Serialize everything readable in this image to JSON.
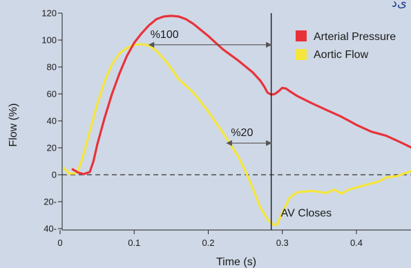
{
  "logo_text": "ﯼﺩ",
  "chart_data": {
    "type": "line",
    "xlabel": "Time (s)",
    "ylabel": "Flow (%)",
    "xlim": [
      0,
      0.47
    ],
    "ylim": [
      -40,
      120
    ],
    "x_ticks": [
      "0",
      "0.1",
      "0.2",
      "0.3",
      "0.4"
    ],
    "x_tick_values": [
      0,
      0.1,
      0.2,
      0.3,
      0.4
    ],
    "y_ticks": [
      "120",
      "100",
      "80",
      "60",
      "40",
      "20",
      "0",
      "20-",
      "40-"
    ],
    "y_tick_values": [
      120,
      100,
      80,
      60,
      40,
      20,
      0,
      -20,
      -40
    ],
    "legend_position": "top-right",
    "series": [
      {
        "name": "Arterial Pressure",
        "color": "#e8323a",
        "points": [
          [
            0.017,
            4
          ],
          [
            0.025,
            1.5
          ],
          [
            0.032,
            0.5
          ],
          [
            0.04,
            2
          ],
          [
            0.045,
            10
          ],
          [
            0.05,
            22
          ],
          [
            0.06,
            42
          ],
          [
            0.07,
            60
          ],
          [
            0.08,
            75
          ],
          [
            0.09,
            88
          ],
          [
            0.1,
            98
          ],
          [
            0.11,
            105
          ],
          [
            0.12,
            111
          ],
          [
            0.13,
            115.5
          ],
          [
            0.14,
            117.5
          ],
          [
            0.15,
            118
          ],
          [
            0.16,
            117.5
          ],
          [
            0.17,
            115.5
          ],
          [
            0.18,
            112
          ],
          [
            0.19,
            107.5
          ],
          [
            0.2,
            103
          ],
          [
            0.21,
            98
          ],
          [
            0.22,
            93
          ],
          [
            0.23,
            89
          ],
          [
            0.24,
            85
          ],
          [
            0.25,
            80.5
          ],
          [
            0.26,
            76
          ],
          [
            0.27,
            70
          ],
          [
            0.275,
            66
          ],
          [
            0.28,
            61
          ],
          [
            0.285,
            59.5
          ],
          [
            0.29,
            60
          ],
          [
            0.295,
            62
          ],
          [
            0.3,
            64.5
          ],
          [
            0.305,
            64
          ],
          [
            0.31,
            62
          ],
          [
            0.32,
            58.5
          ],
          [
            0.34,
            53
          ],
          [
            0.36,
            48
          ],
          [
            0.38,
            43
          ],
          [
            0.4,
            37
          ],
          [
            0.42,
            32
          ],
          [
            0.44,
            29
          ],
          [
            0.46,
            24
          ],
          [
            0.475,
            20
          ]
        ]
      },
      {
        "name": "Aortic Flow",
        "color": "#f5e63c",
        "points": [
          [
            0.005,
            5
          ],
          [
            0.012,
            1
          ],
          [
            0.02,
            1
          ],
          [
            0.025,
            4
          ],
          [
            0.03,
            12
          ],
          [
            0.04,
            32
          ],
          [
            0.05,
            52
          ],
          [
            0.06,
            69
          ],
          [
            0.07,
            82
          ],
          [
            0.08,
            90
          ],
          [
            0.09,
            94
          ],
          [
            0.1,
            96.5
          ],
          [
            0.11,
            97
          ],
          [
            0.12,
            96
          ],
          [
            0.13,
            92
          ],
          [
            0.14,
            86
          ],
          [
            0.15,
            79
          ],
          [
            0.16,
            71
          ],
          [
            0.18,
            61
          ],
          [
            0.2,
            47
          ],
          [
            0.22,
            31
          ],
          [
            0.24,
            14
          ],
          [
            0.25,
            3
          ],
          [
            0.26,
            -10
          ],
          [
            0.27,
            -24
          ],
          [
            0.28,
            -33
          ],
          [
            0.287,
            -37
          ],
          [
            0.293,
            -37
          ],
          [
            0.3,
            -28
          ],
          [
            0.31,
            -17
          ],
          [
            0.32,
            -13
          ],
          [
            0.34,
            -12
          ],
          [
            0.36,
            -13.5
          ],
          [
            0.37,
            -11
          ],
          [
            0.38,
            -14
          ],
          [
            0.39,
            -11
          ],
          [
            0.41,
            -8
          ],
          [
            0.43,
            -5
          ],
          [
            0.44,
            -2
          ],
          [
            0.455,
            -1
          ],
          [
            0.475,
            3
          ]
        ]
      }
    ],
    "annotations": {
      "arrow_100_label": "%100",
      "arrow_20_label": "%20",
      "av_label": "AV Closes",
      "av_x": 0.285,
      "arrow_100": {
        "x1": 0.12,
        "x2": 0.285,
        "y": 96.5
      },
      "arrow_20": {
        "x1": 0.225,
        "x2": 0.285,
        "y": 23.5
      }
    }
  }
}
